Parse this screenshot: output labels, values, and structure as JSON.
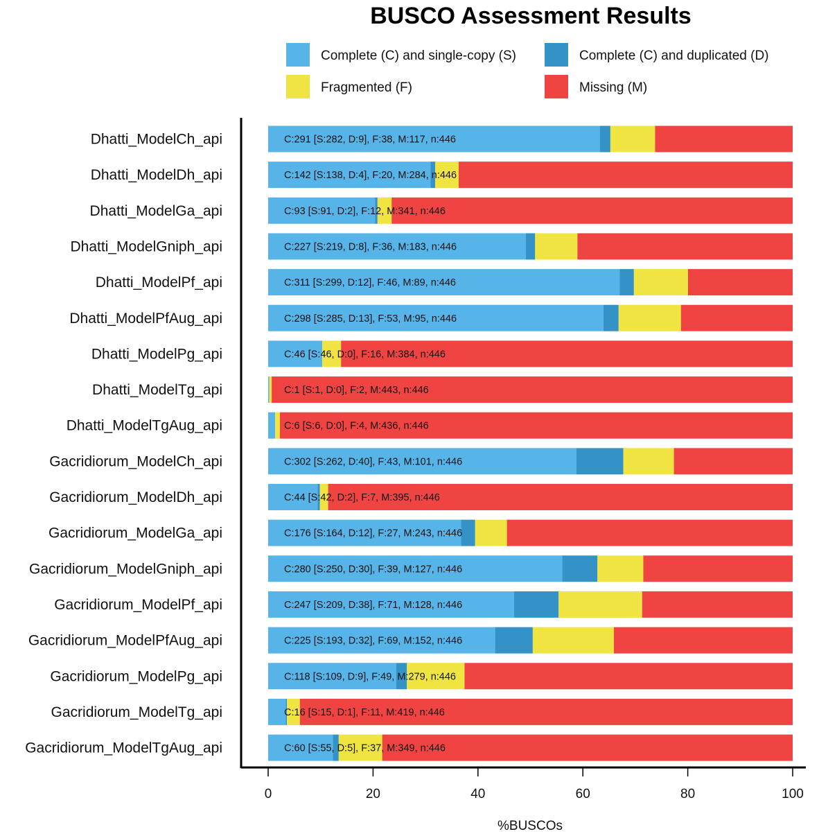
{
  "chart_data": {
    "type": "bar",
    "orientation": "horizontal",
    "stacked": true,
    "title": "BUSCO Assessment Results",
    "xlabel": "%BUSCOs",
    "ylabel": "",
    "xlim": [
      0,
      100
    ],
    "xticks": [
      0,
      20,
      40,
      60,
      80,
      100
    ],
    "grid": false,
    "legend_position": "top",
    "legend": [
      {
        "key": "S",
        "label": "Complete (C) and single-copy (S)",
        "color": "#56B4E9"
      },
      {
        "key": "D",
        "label": "Complete (C) and duplicated (D)",
        "color": "#3492C7"
      },
      {
        "key": "F",
        "label": "Fragmented (F)",
        "color": "#F0E442"
      },
      {
        "key": "M",
        "label": "Missing (M)",
        "color": "#F04442"
      }
    ],
    "bars": [
      {
        "name": "Dhatti_ModelCh_api",
        "S": 282,
        "D": 9,
        "F": 38,
        "M": 117,
        "n": 446,
        "label": "C:291 [S:282, D:9], F:38, M:117, n:446"
      },
      {
        "name": "Dhatti_ModelDh_api",
        "S": 138,
        "D": 4,
        "F": 20,
        "M": 284,
        "n": 446,
        "label": "C:142 [S:138, D:4], F:20, M:284, n:446"
      },
      {
        "name": "Dhatti_ModelGa_api",
        "S": 91,
        "D": 2,
        "F": 12,
        "M": 341,
        "n": 446,
        "label": "C:93 [S:91, D:2], F:12, M:341, n:446"
      },
      {
        "name": "Dhatti_ModelGniph_api",
        "S": 219,
        "D": 8,
        "F": 36,
        "M": 183,
        "n": 446,
        "label": "C:227 [S:219, D:8], F:36, M:183, n:446"
      },
      {
        "name": "Dhatti_ModelPf_api",
        "S": 299,
        "D": 12,
        "F": 46,
        "M": 89,
        "n": 446,
        "label": "C:311 [S:299, D:12], F:46, M:89, n:446"
      },
      {
        "name": "Dhatti_ModelPfAug_api",
        "S": 285,
        "D": 13,
        "F": 53,
        "M": 95,
        "n": 446,
        "label": "C:298 [S:285, D:13], F:53, M:95, n:446"
      },
      {
        "name": "Dhatti_ModelPg_api",
        "S": 46,
        "D": 0,
        "F": 16,
        "M": 384,
        "n": 446,
        "label": "C:46 [S:46, D:0], F:16, M:384, n:446"
      },
      {
        "name": "Dhatti_ModelTg_api",
        "S": 1,
        "D": 0,
        "F": 2,
        "M": 443,
        "n": 446,
        "label": "C:1 [S:1, D:0], F:2, M:443, n:446"
      },
      {
        "name": "Dhatti_ModelTgAug_api",
        "S": 6,
        "D": 0,
        "F": 4,
        "M": 436,
        "n": 446,
        "label": "C:6 [S:6, D:0], F:4, M:436, n:446"
      },
      {
        "name": "Gacridiorum_ModelCh_api",
        "S": 262,
        "D": 40,
        "F": 43,
        "M": 101,
        "n": 446,
        "label": "C:302 [S:262, D:40], F:43, M:101, n:446"
      },
      {
        "name": "Gacridiorum_ModelDh_api",
        "S": 42,
        "D": 2,
        "F": 7,
        "M": 395,
        "n": 446,
        "label": "C:44 [S:42, D:2], F:7, M:395, n:446"
      },
      {
        "name": "Gacridiorum_ModelGa_api",
        "S": 164,
        "D": 12,
        "F": 27,
        "M": 243,
        "n": 446,
        "label": "C:176 [S:164, D:12], F:27, M:243, n:446"
      },
      {
        "name": "Gacridiorum_ModelGniph_api",
        "S": 250,
        "D": 30,
        "F": 39,
        "M": 127,
        "n": 446,
        "label": "C:280 [S:250, D:30], F:39, M:127, n:446"
      },
      {
        "name": "Gacridiorum_ModelPf_api",
        "S": 209,
        "D": 38,
        "F": 71,
        "M": 128,
        "n": 446,
        "label": "C:247 [S:209, D:38], F:71, M:128, n:446"
      },
      {
        "name": "Gacridiorum_ModelPfAug_api",
        "S": 193,
        "D": 32,
        "F": 69,
        "M": 152,
        "n": 446,
        "label": "C:225 [S:193, D:32], F:69, M:152, n:446"
      },
      {
        "name": "Gacridiorum_ModelPg_api",
        "S": 109,
        "D": 9,
        "F": 49,
        "M": 279,
        "n": 446,
        "label": "C:118 [S:109, D:9], F:49, M:279, n:446"
      },
      {
        "name": "Gacridiorum_ModelTg_api",
        "S": 15,
        "D": 1,
        "F": 11,
        "M": 419,
        "n": 446,
        "label": "C:16 [S:15, D:1], F:11, M:419, n:446"
      },
      {
        "name": "Gacridiorum_ModelTgAug_api",
        "S": 55,
        "D": 5,
        "F": 37,
        "M": 349,
        "n": 446,
        "label": "C:60 [S:55, D:5], F:37, M:349, n:446"
      }
    ]
  }
}
